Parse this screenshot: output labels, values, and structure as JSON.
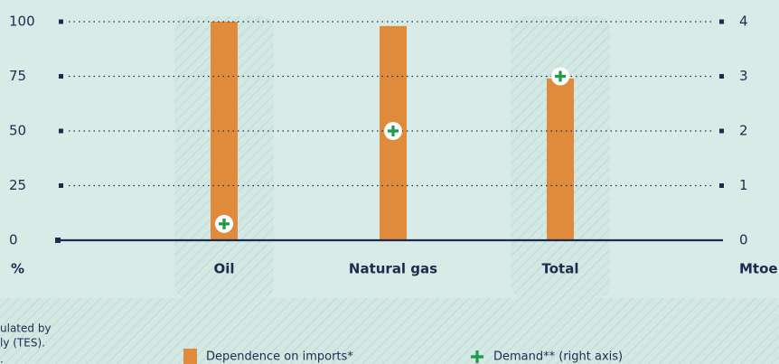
{
  "chart_data": {
    "type": "bar",
    "categories": [
      "Oil",
      "Natural gas",
      "Total"
    ],
    "y_unit": "%",
    "y2_unit": "Mtoe",
    "ylim": [
      0,
      100
    ],
    "yticks": [
      0,
      25,
      50,
      75,
      100
    ],
    "y2lim": [
      0,
      4
    ],
    "y2ticks": [
      0,
      1,
      2,
      3,
      4
    ],
    "grid": true,
    "series": [
      {
        "name": "Dependence on imports*",
        "type": "bar",
        "color": "#e08a3c",
        "values": [
          100,
          98,
          74
        ]
      },
      {
        "name": "Demand** (right axis)",
        "type": "scatter",
        "axis": "y2",
        "color": "#1f9a4a",
        "values": [
          0.3,
          2.0,
          3.0
        ]
      }
    ],
    "footnote_fragments": [
      "ulated by",
      "ly (TES).",
      "."
    ]
  }
}
